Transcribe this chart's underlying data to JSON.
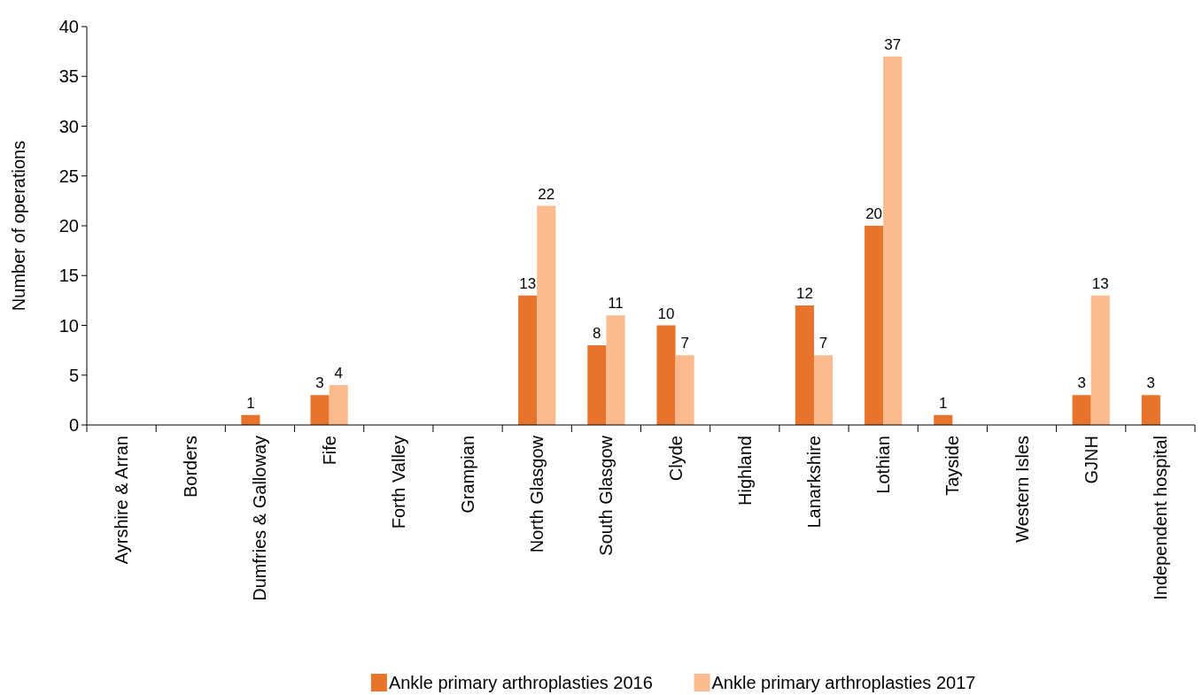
{
  "chart_data": {
    "type": "bar",
    "ylabel": "Number of operations",
    "categories": [
      "Ayrshire & Arran",
      "Borders",
      "Dumfries & Galloway",
      "Fife",
      "Forth Valley",
      "Grampian",
      "North Glasgow",
      "South Glasgow",
      "Clyde",
      "Highland",
      "Lanarkshire",
      "Lothian",
      "Tayside",
      "Western Isles",
      "GJNH",
      "Independent hospital"
    ],
    "series": [
      {
        "name": "Ankle primary arthroplasties 2016",
        "color": "#e8732a",
        "values": [
          0,
          0,
          1,
          3,
          0,
          0,
          13,
          8,
          10,
          0,
          12,
          20,
          1,
          0,
          3,
          3
        ],
        "value_labels": [
          null,
          null,
          "1",
          "3",
          null,
          null,
          "13",
          "8",
          "10",
          null,
          "12",
          "20",
          "1",
          null,
          "3",
          "3"
        ]
      },
      {
        "name": "Ankle primary arthroplasties 2017",
        "color": "#fbbb8e",
        "values": [
          0,
          0,
          0,
          4,
          0,
          0,
          22,
          11,
          7,
          0,
          7,
          37,
          0,
          0,
          13,
          0
        ],
        "value_labels": [
          null,
          null,
          null,
          "4",
          null,
          null,
          "22",
          "11",
          "7",
          null,
          "7",
          "37",
          null,
          null,
          "13",
          null
        ]
      }
    ],
    "ylim": [
      0,
      40
    ],
    "yticks": [
      0,
      5,
      10,
      15,
      20,
      25,
      30,
      35,
      40
    ],
    "grid": false,
    "legend": "bottom"
  }
}
